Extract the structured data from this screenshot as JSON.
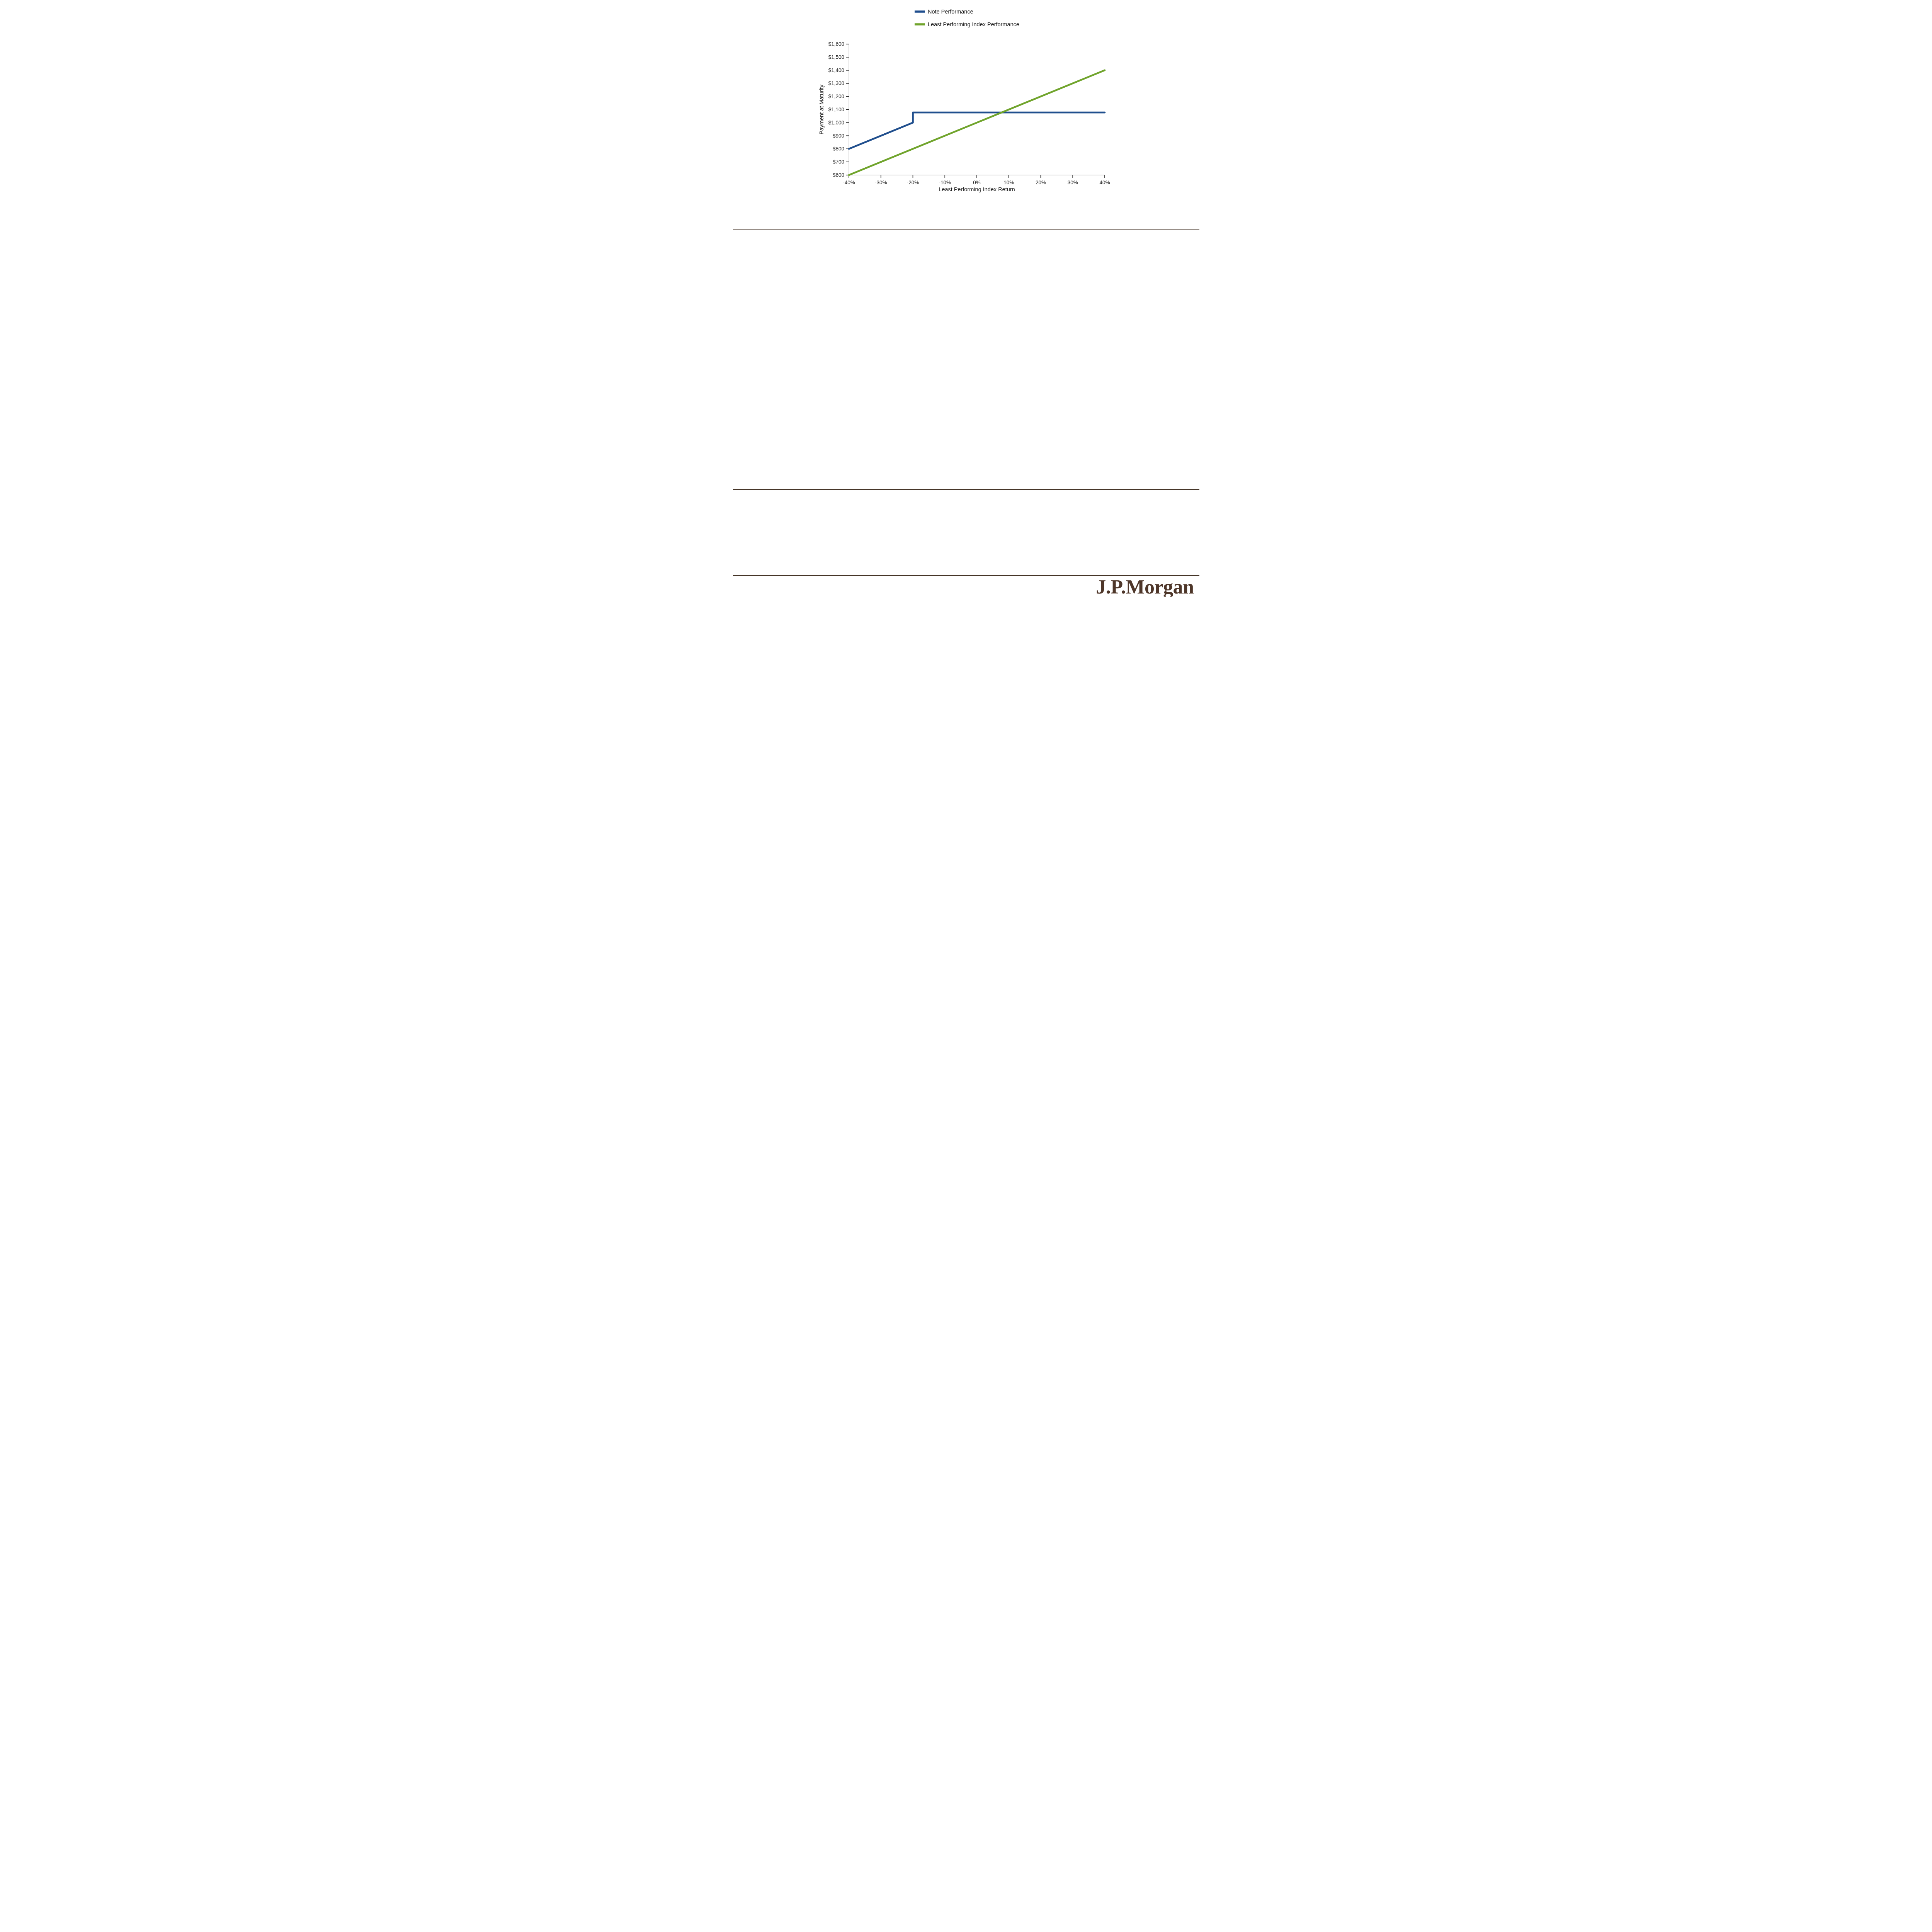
{
  "footer": {
    "logo_text": "J.P.Morgan"
  },
  "brand": {
    "logo_color": "#4E3629",
    "divider_color": "#463629"
  },
  "chart_data": {
    "type": "line",
    "title": "",
    "xlabel": "Least Performing Index Return",
    "ylabel": "Payment at Maturity",
    "xlim": [
      -40,
      40
    ],
    "ylim": [
      600,
      1600
    ],
    "grid": false,
    "legend_position": "top",
    "x_ticks": [
      {
        "v": -40,
        "label": "-40%"
      },
      {
        "v": -30,
        "label": "-30%"
      },
      {
        "v": -20,
        "label": "-20%"
      },
      {
        "v": -10,
        "label": "-10%"
      },
      {
        "v": 0,
        "label": "0%"
      },
      {
        "v": 10,
        "label": "10%"
      },
      {
        "v": 20,
        "label": "20%"
      },
      {
        "v": 30,
        "label": "30%"
      },
      {
        "v": 40,
        "label": "40%"
      }
    ],
    "y_ticks": [
      {
        "v": 600,
        "label": "$600"
      },
      {
        "v": 700,
        "label": "$700"
      },
      {
        "v": 800,
        "label": "$800"
      },
      {
        "v": 900,
        "label": "$900"
      },
      {
        "v": 1000,
        "label": "$1,000"
      },
      {
        "v": 1100,
        "label": "$1,100"
      },
      {
        "v": 1200,
        "label": "$1,200"
      },
      {
        "v": 1300,
        "label": "$1,300"
      },
      {
        "v": 1400,
        "label": "$1,400"
      },
      {
        "v": 1500,
        "label": "$1,500"
      },
      {
        "v": 1600,
        "label": "$1,600"
      }
    ],
    "series": [
      {
        "name": "Note Performance",
        "color": "#1F4E8D",
        "points": [
          [
            -40,
            800
          ],
          [
            -20,
            1000
          ],
          [
            -20,
            1077.5
          ],
          [
            40,
            1077.5
          ]
        ]
      },
      {
        "name": "Least Performing Index Performance",
        "color": "#70A42C",
        "points": [
          [
            -40,
            600
          ],
          [
            40,
            1400
          ]
        ]
      }
    ]
  }
}
